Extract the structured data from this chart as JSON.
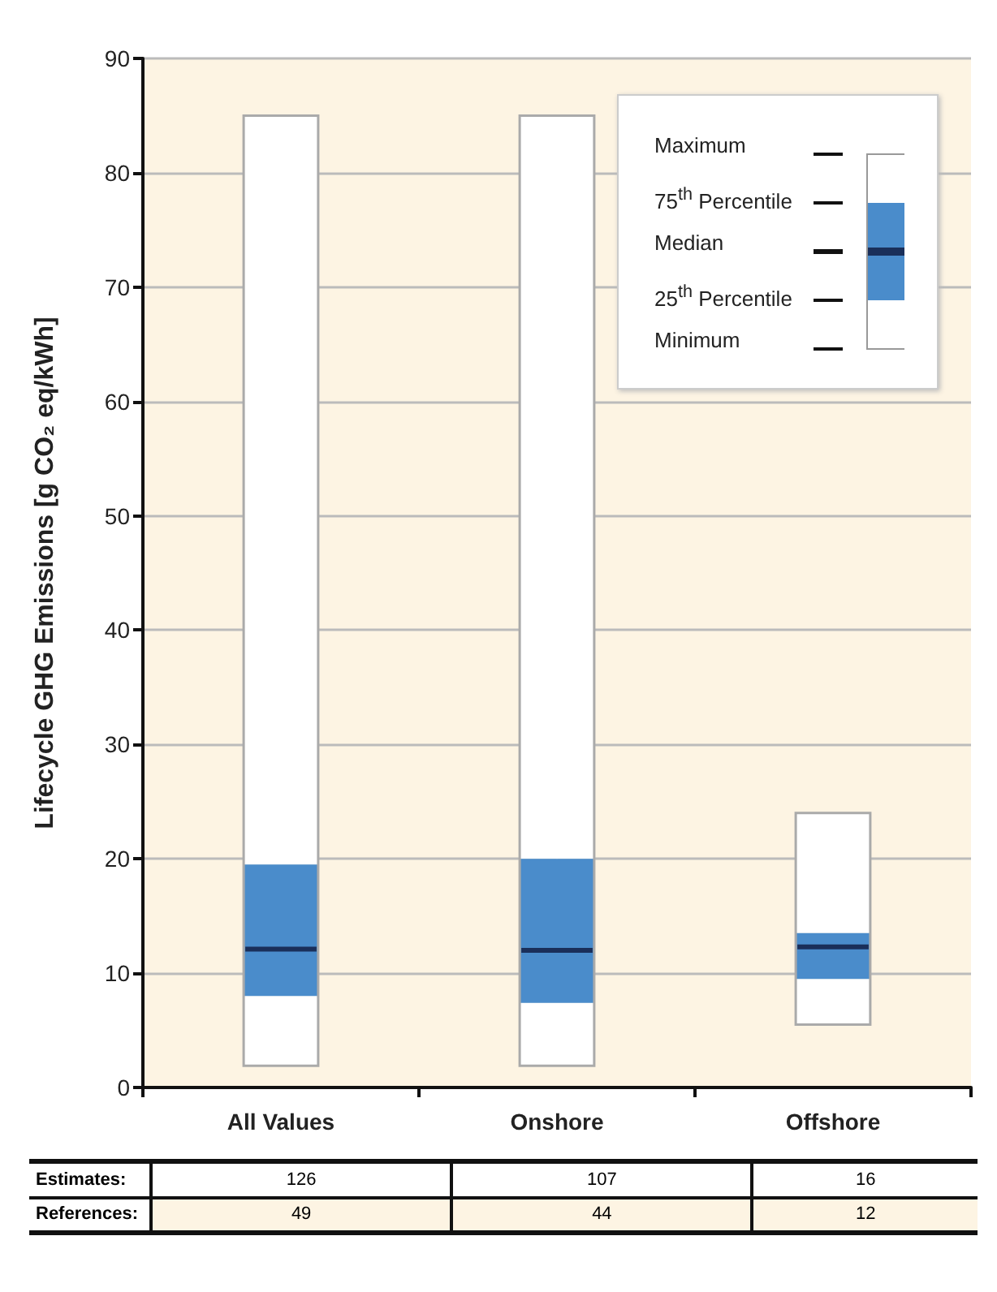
{
  "chart_data": {
    "type": "box",
    "ylabel": "Lifecycle GHG Emissions [g CO₂ eq/kWh]",
    "categories": [
      "All Values",
      "Onshore",
      "Offshore"
    ],
    "series": [
      {
        "color": "#4a8ccb",
        "boxes": [
          {
            "low": 1.9,
            "q1": 8,
            "median": 12.1,
            "q3": 19.5,
            "high": 85
          },
          {
            "low": 1.9,
            "q1": 7.4,
            "median": 12,
            "q3": 20,
            "high": 85
          },
          {
            "low": 5.5,
            "q1": 9.5,
            "median": 12.3,
            "q3": 13.5,
            "high": 24
          }
        ]
      }
    ],
    "ylim": [
      0,
      90
    ],
    "yticks": [
      0,
      10,
      20,
      30,
      40,
      50,
      60,
      70,
      80,
      90
    ],
    "grid": "y",
    "annotations": [
      "Maximum",
      "75$^{th}$ Percentile",
      "Median",
      "25$^{th}$ Percentile",
      "Minimum",
      "Estimates:",
      "126",
      "107",
      "16",
      "References:",
      "49",
      "44",
      "12"
    ]
  }
}
